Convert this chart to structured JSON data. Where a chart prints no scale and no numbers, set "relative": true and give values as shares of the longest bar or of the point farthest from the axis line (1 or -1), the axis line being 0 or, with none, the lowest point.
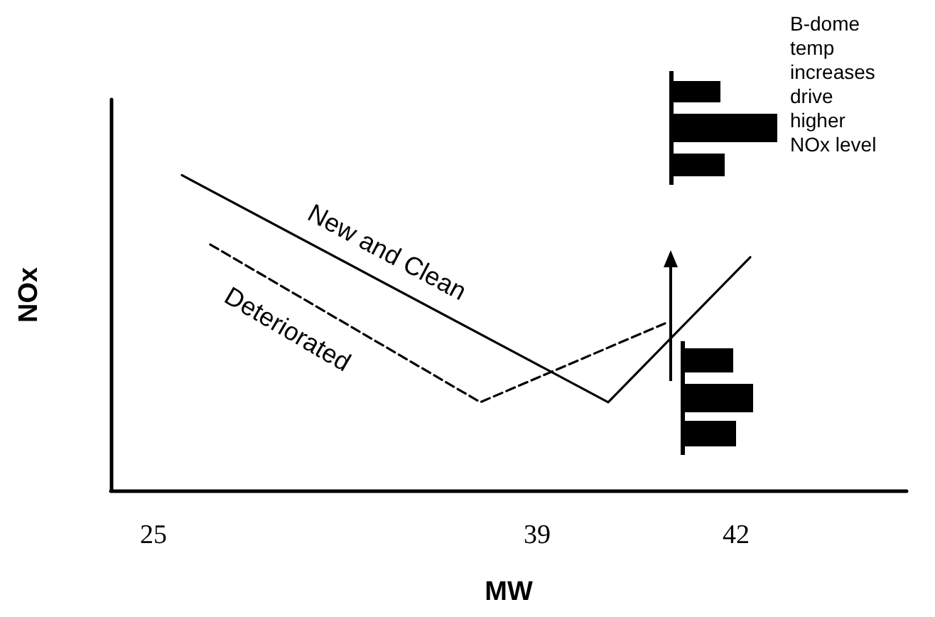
{
  "chart_data": {
    "type": "line",
    "relative": true,
    "xlabel": "MW",
    "ylabel": "NOx",
    "categories": [
      null,
      null,
      null,
      "25",
      null,
      null,
      null,
      null,
      null,
      null,
      null,
      null,
      null,
      null,
      null,
      null,
      null,
      null,
      null,
      null,
      null,
      null,
      null,
      null,
      null,
      null,
      null,
      null,
      null,
      null,
      "39",
      null,
      null,
      null,
      null,
      null,
      null,
      null,
      null,
      null,
      null,
      null,
      null,
      null,
      "42",
      null,
      null,
      null,
      null,
      null,
      null,
      null,
      null,
      null,
      null,
      null,
      null
    ],
    "series": [
      {
        "name": "New and Clean",
        "color": "#000000",
        "line_style": "solid",
        "values": [
          null,
          null,
          null,
          null,
          null,
          1,
          null,
          null,
          null,
          null,
          null,
          null,
          null,
          null,
          null,
          null,
          null,
          null,
          null,
          null,
          null,
          null,
          null,
          null,
          null,
          null,
          null,
          null,
          null,
          null,
          null,
          null,
          null,
          null,
          null,
          0.28,
          null,
          null,
          null,
          null,
          null,
          null,
          null,
          null,
          null,
          0.74,
          null,
          null,
          null,
          null,
          null,
          null,
          null,
          null,
          null,
          null,
          null
        ]
      },
      {
        "name": "Deteriorated",
        "color": "#000000",
        "line_style": "dashed",
        "values": [
          null,
          null,
          null,
          null,
          null,
          null,
          null,
          0.78,
          null,
          null,
          null,
          null,
          null,
          null,
          null,
          null,
          null,
          null,
          null,
          null,
          null,
          null,
          null,
          null,
          null,
          null,
          0.28,
          null,
          null,
          null,
          null,
          null,
          null,
          null,
          null,
          null,
          null,
          null,
          null,
          0.53,
          null,
          null,
          null,
          null,
          null,
          null,
          null,
          null,
          null,
          null,
          null,
          null,
          null,
          null,
          null,
          null,
          null
        ]
      }
    ],
    "marker": "none",
    "grid": false,
    "legend": false,
    "annotations": [
      "B-dome temp increases drive higher NOx level"
    ]
  }
}
